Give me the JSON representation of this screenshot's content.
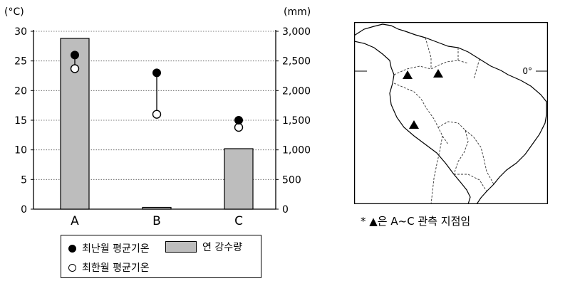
{
  "chart_data": {
    "type": "bar",
    "categories": [
      "A",
      "B",
      "C"
    ],
    "left_axis_unit": "(°C)",
    "right_axis_unit": "(mm)",
    "left_ticks": [
      "0",
      "5",
      "10",
      "15",
      "20",
      "25",
      "30"
    ],
    "right_ticks": [
      "0",
      "500",
      "1,000",
      "1,500",
      "2,000",
      "2,500",
      "3,000"
    ],
    "ylim_left": [
      0,
      30
    ],
    "ylim_right": [
      0,
      3000
    ],
    "grid": true,
    "series": [
      {
        "name": "연 강수량",
        "axis": "right",
        "kind": "bar",
        "values": [
          2880,
          30,
          1020
        ]
      },
      {
        "name": "최난월 평균기온",
        "axis": "left",
        "kind": "point-filled",
        "values": [
          26,
          23,
          15
        ]
      },
      {
        "name": "최한월 평균기온",
        "axis": "left",
        "kind": "point-open",
        "values": [
          23.7,
          16,
          13.8
        ]
      }
    ]
  },
  "legend": {
    "warmest": "최난월 평균기온",
    "precip": "연 강수량",
    "coldest": "최한월 평균기온"
  },
  "map": {
    "equator_label": "0°",
    "note": "* ▲은 A~C 관측 지점임"
  },
  "colors": {
    "bar": "#bdbdbd",
    "grid": "#555555"
  }
}
